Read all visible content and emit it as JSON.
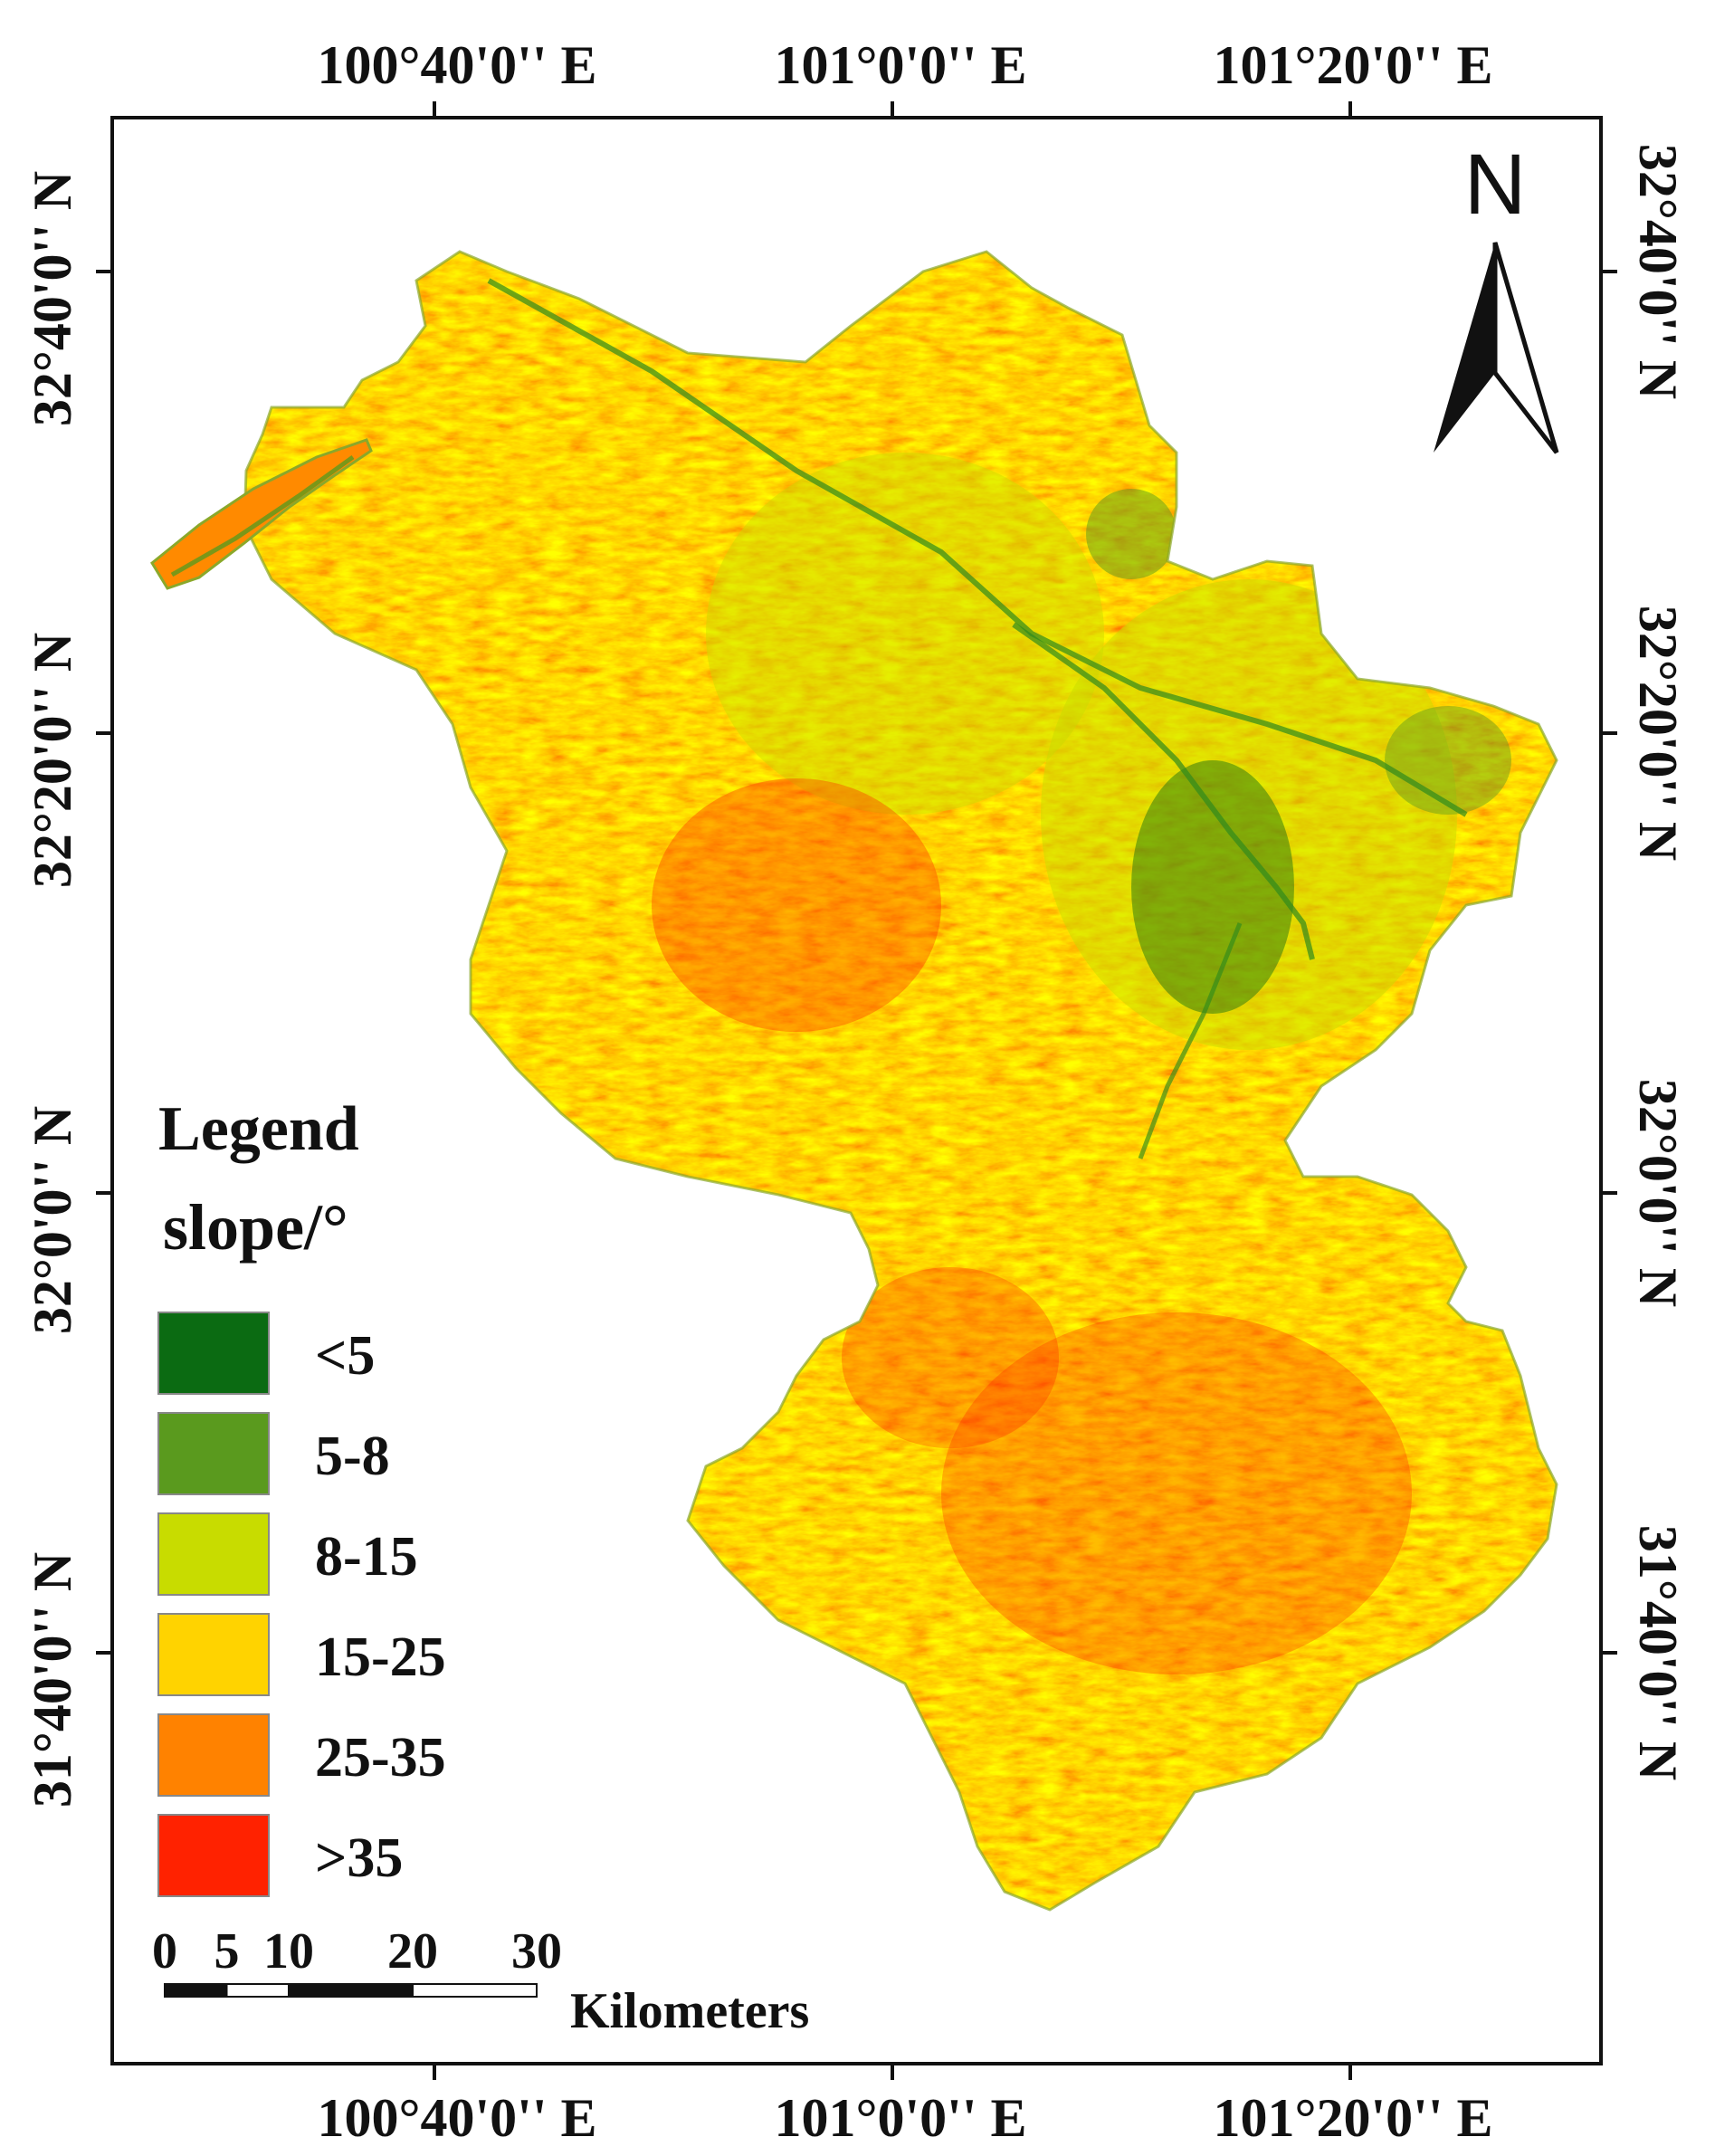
{
  "coordinate_labels": {
    "top": [
      "100°40'0'' E",
      "101°0'0'' E",
      "101°20'0'' E"
    ],
    "bottom": [
      "100°40'0'' E",
      "101°0'0'' E",
      "101°20'0'' E"
    ],
    "left": [
      "32°40'0'' N",
      "32°20'0'' N",
      "32°0'0'' N",
      "31°40'0'' N"
    ],
    "right": [
      "32°40'0'' N",
      "32°20'0'' N",
      "32°0'0'' N",
      "31°40'0'' N"
    ]
  },
  "north_arrow": {
    "label": "N",
    "icon": "north-arrow-icon"
  },
  "legend": {
    "title": "Legend",
    "subtitle": "slope/°",
    "classes": [
      {
        "label": "<5",
        "color": "#0b6b12"
      },
      {
        "label": "5-8",
        "color": "#5a9a1e"
      },
      {
        "label": "8-15",
        "color": "#c8dc00"
      },
      {
        "label": "15-25",
        "color": "#ffd300"
      },
      {
        "label": "25-35",
        "color": "#ff8200"
      },
      {
        "label": ">35",
        "color": "#ff2200"
      }
    ]
  },
  "scale_bar": {
    "ticks": [
      "0",
      "5",
      "10",
      "20",
      "30"
    ],
    "unit": "Kilometers"
  }
}
